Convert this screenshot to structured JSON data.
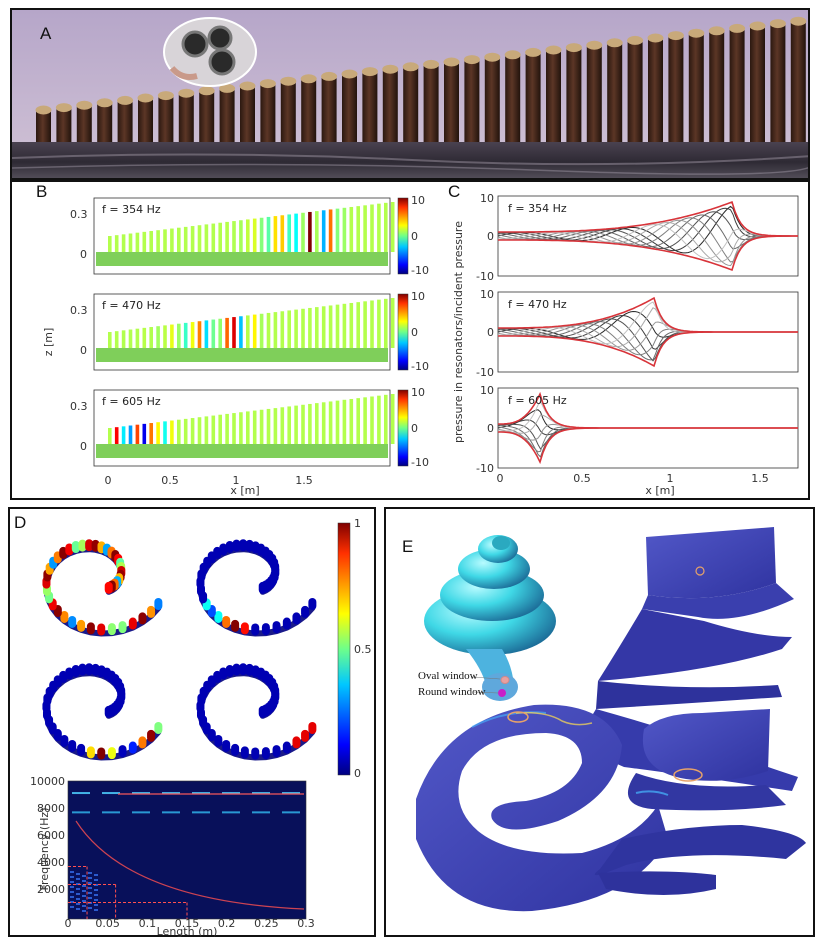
{
  "panels": {
    "A": {
      "letter": "A"
    },
    "B": {
      "letter": "B",
      "ylabel": "z [m]",
      "xlabel": "x [m]",
      "y_ticks": [
        "0.3",
        "0"
      ],
      "x_ticks": [
        "0",
        "0.5",
        "1",
        "1.5"
      ],
      "colorbar_ticks": [
        "10",
        "0",
        "-10"
      ],
      "subplots": [
        {
          "freq_label": "f = 354 Hz"
        },
        {
          "freq_label": "f = 470 Hz"
        },
        {
          "freq_label": "f = 605 Hz"
        }
      ]
    },
    "C": {
      "letter": "C",
      "ylabel": "pressure in resonators/incident pressure",
      "xlabel": "x [m]",
      "y_ticks": [
        "10",
        "0",
        "-10"
      ],
      "x_ticks": [
        "0",
        "0.5",
        "1",
        "1.5"
      ],
      "subplots": [
        {
          "freq_label": "f = 354 Hz"
        },
        {
          "freq_label": "f = 470 Hz"
        },
        {
          "freq_label": "f = 605 Hz"
        }
      ]
    },
    "D": {
      "letter": "D",
      "colorbar_ticks": [
        "1",
        "0.5",
        "0"
      ],
      "spectro_ylabel": "Frequency (Hz)",
      "spectro_xlabel": "Length (m)",
      "spectro_y_ticks": [
        "10000",
        "8000",
        "6000",
        "4000",
        "2000"
      ],
      "spectro_x_ticks": [
        "0",
        "0.05",
        "0.1",
        "0.15",
        "0.2",
        "0.25",
        "0.3"
      ]
    },
    "E": {
      "letter": "E",
      "oval_window": "Oval window",
      "round_window": "Round window"
    }
  },
  "colors": {
    "resonator_brown": "#4a2a1e",
    "cap_tan": "#c8a97a",
    "wall_purple": "#b9a8c8",
    "field_green": "#7fcf5a",
    "spiral_blue": "#3b3fb0",
    "cochlea_cyan": "#3fd8e6",
    "envelope_red": "#d8343a"
  }
}
